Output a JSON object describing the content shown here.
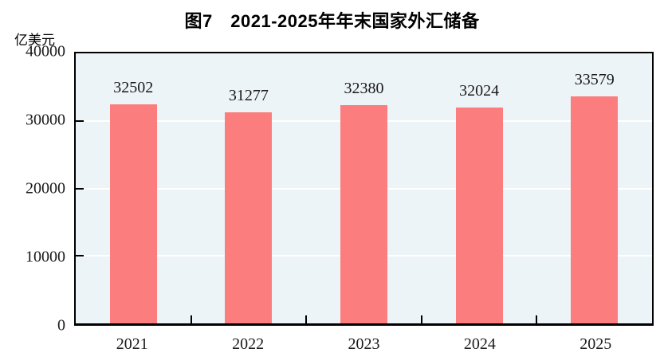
{
  "title": "图7　2021-2025年年末国家外汇储备",
  "unit_label": "亿美元",
  "colors": {
    "bar": "#fc7d7d",
    "plot_background": "#edf4f7",
    "gridline": "#ffffff",
    "axis": "#000000",
    "text": "#000000"
  },
  "chart_data": {
    "type": "bar",
    "title": "图7　2021-2025年年末国家外汇储备",
    "categories": [
      "2021",
      "2022",
      "2023",
      "2024",
      "2025"
    ],
    "values": [
      32502,
      31277,
      32380,
      32024,
      33579
    ],
    "data_labels": [
      "32502",
      "31277",
      "32380",
      "32024",
      "33579"
    ],
    "xlabel": "",
    "ylabel": "亿美元",
    "ylim": [
      0,
      40000
    ],
    "yticks": [
      0,
      10000,
      20000,
      30000,
      40000
    ],
    "ytick_labels": [
      "0",
      "10000",
      "20000",
      "30000",
      "40000"
    ],
    "grid": "horizontal",
    "legend_position": "none",
    "bar_color": "#fc7d7d",
    "plot_background": "#edf4f7",
    "gridline_color": "#ffffff"
  }
}
